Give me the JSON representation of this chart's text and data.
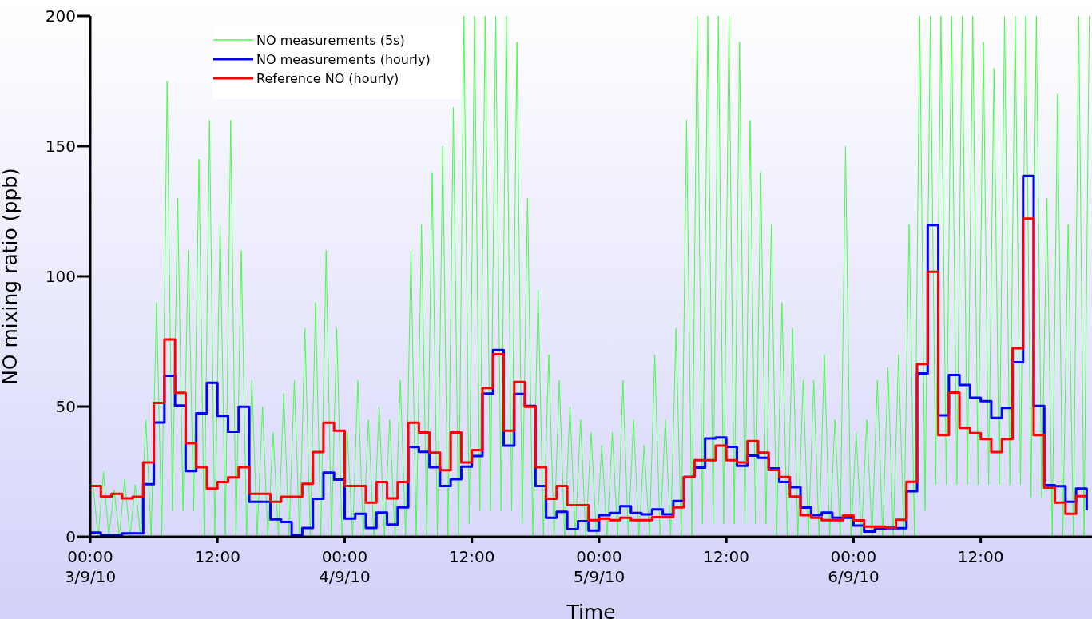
{
  "chart_data": {
    "type": "step",
    "xlabel": "Time",
    "ylabel": "NO mixing ratio (ppb)",
    "xlim": [
      "--09-03T00:00",
      "--09-06T22:30"
    ],
    "xticks": [
      {
        "value": "--09-03T00:00",
        "label": "00:00\n3/9/10"
      },
      {
        "value": "--09-03T12:00",
        "label": "12:00"
      },
      {
        "value": "--09-04T00:00",
        "label": "00:00\n4/9/10"
      },
      {
        "value": "--09-04T12:00",
        "label": "12:00"
      },
      {
        "value": "--09-05T00:00",
        "label": "00:00\n5/9/10"
      },
      {
        "value": "--09-05T12:00",
        "label": "12:00"
      },
      {
        "value": "--09-06T00:00",
        "label": "00:00\n6/9/10"
      },
      {
        "value": "--09-06T12:00",
        "label": "12:00"
      }
    ],
    "ylim": [
      0,
      200
    ],
    "yticks": [
      0,
      50,
      100,
      150,
      200
    ],
    "legend": "top left",
    "x": [
      "--09-03T00:00",
      "--09-03T01:00",
      "--09-03T02:00",
      "--09-03T03:00",
      "--09-03T04:00",
      "--09-03T05:00",
      "--09-03T06:00",
      "--09-03T07:00",
      "--09-03T08:00",
      "--09-03T09:00",
      "--09-03T10:00",
      "--09-03T11:00",
      "--09-03T12:00",
      "--09-03T13:00",
      "--09-03T14:00",
      "--09-03T15:00",
      "--09-03T16:00",
      "--09-03T17:00",
      "--09-03T18:00",
      "--09-03T19:00",
      "--09-03T20:00",
      "--09-03T21:00",
      "--09-03T22:00",
      "--09-03T23:00",
      "--09-04T00:00",
      "--09-04T01:00",
      "--09-04T02:00",
      "--09-04T03:00",
      "--09-04T04:00",
      "--09-04T05:00",
      "--09-04T06:00",
      "--09-04T07:00",
      "--09-04T08:00",
      "--09-04T09:00",
      "--09-04T10:00",
      "--09-04T11:00",
      "--09-04T12:00",
      "--09-04T13:00",
      "--09-04T14:00",
      "--09-04T15:00",
      "--09-04T16:00",
      "--09-04T17:00",
      "--09-04T18:00",
      "--09-04T19:00",
      "--09-04T20:00",
      "--09-04T21:00",
      "--09-04T22:00",
      "--09-04T23:00",
      "--09-05T00:00",
      "--09-05T01:00",
      "--09-05T02:00",
      "--09-05T03:00",
      "--09-05T04:00",
      "--09-05T05:00",
      "--09-05T06:00",
      "--09-05T07:00",
      "--09-05T08:00",
      "--09-05T09:00",
      "--09-05T10:00",
      "--09-05T11:00",
      "--09-05T12:00",
      "--09-05T13:00",
      "--09-05T14:00",
      "--09-05T15:00",
      "--09-05T16:00",
      "--09-05T17:00",
      "--09-05T18:00",
      "--09-05T19:00",
      "--09-05T20:00",
      "--09-05T21:00",
      "--09-05T22:00",
      "--09-05T23:00",
      "--09-06T00:00",
      "--09-06T01:00",
      "--09-06T02:00",
      "--09-06T03:00",
      "--09-06T04:00",
      "--09-06T05:00",
      "--09-06T06:00",
      "--09-06T07:00",
      "--09-06T08:00",
      "--09-06T09:00",
      "--09-06T10:00",
      "--09-06T11:00",
      "--09-06T12:00",
      "--09-06T13:00",
      "--09-06T14:00",
      "--09-06T15:00",
      "--09-06T16:00",
      "--09-06T17:00",
      "--09-06T18:00",
      "--09-06T19:00",
      "--09-06T20:00",
      "--09-06T21:00",
      "--09-06T22:00"
    ],
    "series": [
      {
        "name": "NO measurements (5s)",
        "type": "line",
        "color": "#44ff44",
        "x": [
          "--09-03T00:15",
          "--09-03T00:45",
          "--09-03T01:15",
          "--09-03T01:45",
          "--09-03T02:15",
          "--09-03T02:45",
          "--09-03T03:15",
          "--09-03T03:45",
          "--09-03T04:15",
          "--09-03T04:45",
          "--09-03T05:15",
          "--09-03T05:45",
          "--09-03T06:15",
          "--09-03T06:45",
          "--09-03T07:15",
          "--09-03T07:45",
          "--09-03T08:15",
          "--09-03T08:45",
          "--09-03T09:15",
          "--09-03T09:45",
          "--09-03T10:15",
          "--09-03T10:45",
          "--09-03T11:15",
          "--09-03T11:45",
          "--09-03T12:15",
          "--09-03T12:45",
          "--09-03T13:15",
          "--09-03T13:45",
          "--09-03T14:15",
          "--09-03T14:45",
          "--09-03T15:15",
          "--09-03T15:45",
          "--09-03T16:15",
          "--09-03T16:45",
          "--09-03T17:15",
          "--09-03T17:45",
          "--09-03T18:15",
          "--09-03T18:45",
          "--09-03T19:15",
          "--09-03T19:45",
          "--09-03T20:15",
          "--09-03T20:45",
          "--09-03T21:15",
          "--09-03T21:45",
          "--09-03T22:15",
          "--09-03T22:45",
          "--09-03T23:15",
          "--09-03T23:45",
          "--09-04T00:15",
          "--09-04T00:45",
          "--09-04T01:15",
          "--09-04T01:45",
          "--09-04T02:15",
          "--09-04T02:45",
          "--09-04T03:15",
          "--09-04T03:45",
          "--09-04T04:15",
          "--09-04T04:45",
          "--09-04T05:15",
          "--09-04T05:45",
          "--09-04T06:15",
          "--09-04T06:45",
          "--09-04T07:15",
          "--09-04T07:45",
          "--09-04T08:15",
          "--09-04T08:45",
          "--09-04T09:15",
          "--09-04T09:45",
          "--09-04T10:15",
          "--09-04T10:45",
          "--09-04T11:15",
          "--09-04T11:45",
          "--09-04T12:15",
          "--09-04T12:45",
          "--09-04T13:15",
          "--09-04T13:45",
          "--09-04T14:15",
          "--09-04T14:45",
          "--09-04T15:15",
          "--09-04T15:45",
          "--09-04T16:15",
          "--09-04T16:45",
          "--09-04T17:15",
          "--09-04T17:45",
          "--09-04T18:15",
          "--09-04T18:45",
          "--09-04T19:15",
          "--09-04T19:45",
          "--09-04T20:15",
          "--09-04T20:45",
          "--09-04T21:15",
          "--09-04T21:45",
          "--09-04T22:15",
          "--09-04T22:45",
          "--09-04T23:15",
          "--09-04T23:45",
          "--09-05T00:15",
          "--09-05T00:45",
          "--09-05T01:15",
          "--09-05T01:45",
          "--09-05T02:15",
          "--09-05T02:45",
          "--09-05T03:15",
          "--09-05T03:45",
          "--09-05T04:15",
          "--09-05T04:45",
          "--09-05T05:15",
          "--09-05T05:45",
          "--09-05T06:15",
          "--09-05T06:45",
          "--09-05T07:15",
          "--09-05T07:45",
          "--09-05T08:15",
          "--09-05T08:45",
          "--09-05T09:15",
          "--09-05T09:45",
          "--09-05T10:15",
          "--09-05T10:45",
          "--09-05T11:15",
          "--09-05T11:45",
          "--09-05T12:15",
          "--09-05T12:45",
          "--09-05T13:15",
          "--09-05T13:45",
          "--09-05T14:15",
          "--09-05T14:45",
          "--09-05T15:15",
          "--09-05T15:45",
          "--09-05T16:15",
          "--09-05T16:45",
          "--09-05T17:15",
          "--09-05T17:45",
          "--09-05T18:15",
          "--09-05T18:45",
          "--09-05T19:15",
          "--09-05T19:45",
          "--09-05T20:15",
          "--09-05T20:45",
          "--09-05T21:15",
          "--09-05T21:45",
          "--09-05T22:15",
          "--09-05T22:45",
          "--09-05T23:15",
          "--09-05T23:45",
          "--09-06T00:15",
          "--09-06T00:45",
          "--09-06T01:15",
          "--09-06T01:45",
          "--09-06T02:15",
          "--09-06T02:45",
          "--09-06T03:15",
          "--09-06T03:45",
          "--09-06T04:15",
          "--09-06T04:45",
          "--09-06T05:15",
          "--09-06T05:45",
          "--09-06T06:15",
          "--09-06T06:45",
          "--09-06T07:15",
          "--09-06T07:45",
          "--09-06T08:15",
          "--09-06T08:45",
          "--09-06T09:15",
          "--09-06T09:45",
          "--09-06T10:15",
          "--09-06T10:45",
          "--09-06T11:15",
          "--09-06T11:45",
          "--09-06T12:15",
          "--09-06T12:45",
          "--09-06T13:15",
          "--09-06T13:45",
          "--09-06T14:15",
          "--09-06T14:45",
          "--09-06T15:15",
          "--09-06T15:45",
          "--09-06T16:15",
          "--09-06T16:45",
          "--09-06T17:15",
          "--09-06T17:45",
          "--09-06T18:15",
          "--09-06T18:45",
          "--09-06T19:15",
          "--09-06T19:45",
          "--09-06T20:15",
          "--09-06T20:45",
          "--09-06T21:15",
          "--09-06T21:45",
          "--09-06T22:15"
        ],
        "values": [
          20,
          0,
          25,
          0,
          18,
          0,
          22,
          0,
          20,
          0,
          45,
          0,
          90,
          0,
          175,
          10,
          130,
          10,
          110,
          10,
          145,
          0,
          160,
          0,
          120,
          0,
          160,
          0,
          110,
          0,
          60,
          0,
          50,
          0,
          40,
          0,
          55,
          0,
          60,
          0,
          80,
          0,
          90,
          0,
          110,
          0,
          80,
          0,
          40,
          0,
          60,
          0,
          45,
          0,
          50,
          0,
          45,
          0,
          60,
          0,
          110,
          0,
          120,
          0,
          140,
          0,
          150,
          0,
          165,
          0,
          200,
          5,
          200,
          10,
          200,
          10,
          200,
          10,
          200,
          10,
          190,
          5,
          130,
          0,
          95,
          0,
          70,
          0,
          60,
          0,
          50,
          0,
          45,
          0,
          40,
          0,
          35,
          0,
          40,
          0,
          60,
          0,
          45,
          0,
          35,
          0,
          70,
          0,
          45,
          0,
          80,
          0,
          160,
          0,
          200,
          5,
          200,
          5,
          200,
          5,
          200,
          5,
          190,
          5,
          160,
          5,
          140,
          5,
          120,
          0,
          90,
          0,
          80,
          0,
          60,
          0,
          60,
          0,
          70,
          0,
          45,
          0,
          150,
          0,
          40,
          0,
          45,
          0,
          60,
          0,
          65,
          0,
          70,
          0,
          120,
          0,
          200,
          10,
          200,
          20,
          200,
          20,
          200,
          20,
          200,
          20,
          200,
          20,
          190,
          20,
          180,
          20,
          200,
          20,
          200,
          20,
          200,
          15,
          200,
          15,
          130,
          0,
          170,
          0,
          120,
          0,
          200,
          0,
          200
        ]
      },
      {
        "name": "NO measurements (hourly)",
        "color": "#0000ff",
        "values": [
          1.6,
          0.5,
          0.5,
          1.3,
          1.3,
          20.2,
          43.9,
          61.8,
          50.4,
          25.2,
          47.4,
          59.1,
          46.4,
          40.3,
          49.9,
          13.4,
          13.4,
          6.7,
          5.7,
          0.6,
          3.4,
          14.6,
          24.6,
          21.9,
          7,
          8.8,
          3.4,
          9.3,
          4.7,
          11.3,
          34.4,
          32.6,
          26.7,
          19.5,
          22.1,
          26.9,
          31,
          55,
          71.7,
          35,
          54.8,
          50.2,
          19.5,
          7.3,
          9.6,
          2.9,
          6,
          2.4,
          8.3,
          9.1,
          11.7,
          9.1,
          8.6,
          10.5,
          8.6,
          13.7,
          22.9,
          26.5,
          37.7,
          38.1,
          34.5,
          27.2,
          31.1,
          30.3,
          26.2,
          21,
          19,
          11.2,
          8.3,
          9.3,
          7.3,
          7.3,
          4.3,
          2,
          3,
          3.3,
          3.3,
          17.5,
          62.7,
          119.7,
          46.6,
          62.1,
          58.3,
          53.4,
          52.1,
          45.6,
          49.5,
          67,
          138.6,
          50.2,
          19.8,
          19.4,
          13.4,
          18.5,
          10.2
        ]
      },
      {
        "name": "Reference NO (hourly)",
        "color": "#ff0000",
        "values": [
          19.5,
          15.4,
          16.5,
          14.7,
          15.3,
          28.5,
          51.4,
          75.8,
          55.3,
          35.9,
          26.7,
          18.5,
          21,
          22.8,
          26.7,
          16.5,
          16.5,
          13.4,
          15.3,
          15.3,
          20.3,
          32.5,
          43.8,
          40.7,
          19.5,
          19.5,
          13.1,
          21,
          14.7,
          21,
          43.8,
          40,
          32.3,
          25.5,
          40,
          28.5,
          33.3,
          57.1,
          70.1,
          40.7,
          59.4,
          49.9,
          26.7,
          14.6,
          19.5,
          12.1,
          12.1,
          6.4,
          7,
          6.4,
          7.3,
          6.4,
          6.4,
          7.5,
          7.5,
          11.3,
          22.9,
          29.4,
          29.4,
          35,
          29.4,
          28.5,
          36.7,
          32.3,
          25.6,
          22.9,
          15.4,
          8.3,
          7.3,
          6.4,
          6.4,
          8.1,
          6.3,
          3.9,
          3.9,
          3.5,
          6.5,
          21.1,
          66.3,
          101.8,
          39,
          55.4,
          41.8,
          39.8,
          37.5,
          32.5,
          37.5,
          72.4,
          122.2,
          39,
          18.9,
          13.1,
          8.8,
          15.6,
          15.6
        ]
      }
    ]
  }
}
